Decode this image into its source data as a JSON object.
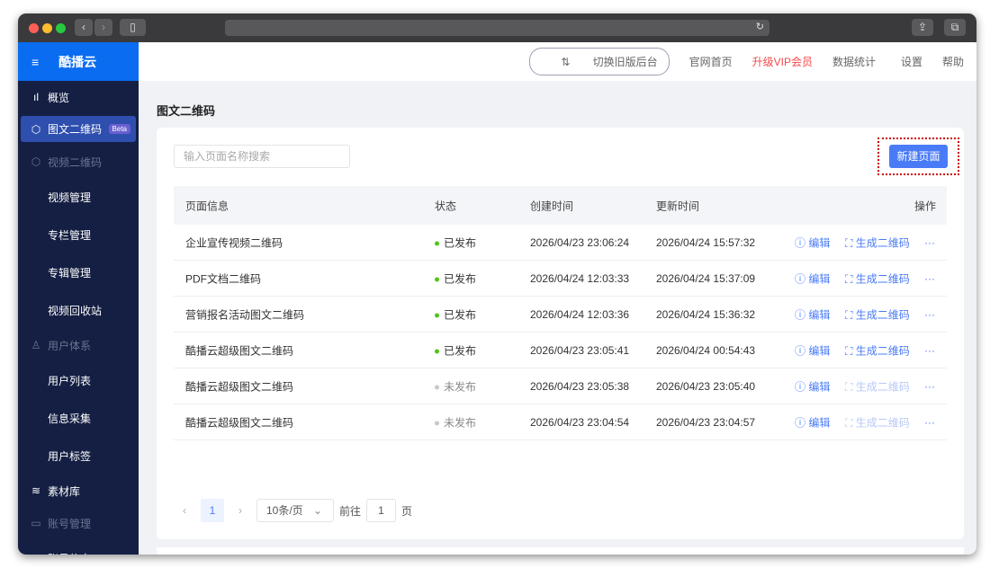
{
  "sidebar": {
    "brand": "酷播云",
    "items": [
      {
        "label": "概览",
        "icon": "bar-chart-icon"
      },
      {
        "label": "图文二维码",
        "icon": "cube-icon",
        "badge": "Beta",
        "active": true
      },
      {
        "label": "视频二维码",
        "icon": "cube-icon",
        "group": true
      },
      {
        "label": "视频管理"
      },
      {
        "label": "专栏管理"
      },
      {
        "label": "专辑管理"
      },
      {
        "label": "视频回收站"
      },
      {
        "label": "用户体系",
        "icon": "user-icon",
        "group": true
      },
      {
        "label": "用户列表"
      },
      {
        "label": "信息采集"
      },
      {
        "label": "用户标签"
      },
      {
        "label": "素材库",
        "icon": "layers-icon"
      },
      {
        "label": "账号管理",
        "icon": "id-card-icon",
        "group": true
      },
      {
        "label": "账号信息"
      }
    ]
  },
  "topbar": {
    "switch": "切换旧版后台",
    "home": "官网首页",
    "vip": "升级VIP会员",
    "stats": "数据统计",
    "settings": "设置",
    "help": "帮助"
  },
  "colors": {
    "brand": "#0a6cf0",
    "sidebar": "#141f43",
    "primary": "#4a7bf7",
    "vip": "#f5494b",
    "published": "#52c41a",
    "unpublished": "#c8c8c8"
  },
  "page": {
    "title": "图文二维码",
    "search_placeholder": "输入页面名称搜索",
    "new_button": "新建页面"
  },
  "table": {
    "headers": [
      "页面信息",
      "状态",
      "创建时间",
      "更新时间",
      "操作"
    ],
    "rows": [
      {
        "name": "企业宣传视频二维码",
        "status": "已发布",
        "created": "2026/04/23 23:06:24",
        "updated": "2026/04/24 15:57:32",
        "published": true
      },
      {
        "name": "PDF文档二维码",
        "status": "已发布",
        "created": "2026/04/24 12:03:33",
        "updated": "2026/04/24 15:37:09",
        "published": true
      },
      {
        "name": "营销报名活动图文二维码",
        "status": "已发布",
        "created": "2026/04/24 12:03:36",
        "updated": "2026/04/24 15:36:32",
        "published": true
      },
      {
        "name": "酷播云超级图文二维码",
        "status": "已发布",
        "created": "2026/04/23 23:05:41",
        "updated": "2026/04/24 00:54:43",
        "published": true
      },
      {
        "name": "酷播云超级图文二维码",
        "status": "未发布",
        "created": "2026/04/23 23:05:38",
        "updated": "2026/04/23 23:05:40",
        "published": false
      },
      {
        "name": "酷播云超级图文二维码",
        "status": "未发布",
        "created": "2026/04/23 23:04:54",
        "updated": "2026/04/23 23:04:57",
        "published": false
      }
    ],
    "actions": {
      "edit": "编辑",
      "qrcode": "生成二维码",
      "more": "···"
    }
  },
  "pagination": {
    "prev": "‹",
    "current": "1",
    "next": "›",
    "page_size": "10条/页",
    "goto_label": "前往",
    "goto_value": "1",
    "page_suffix": "页"
  }
}
